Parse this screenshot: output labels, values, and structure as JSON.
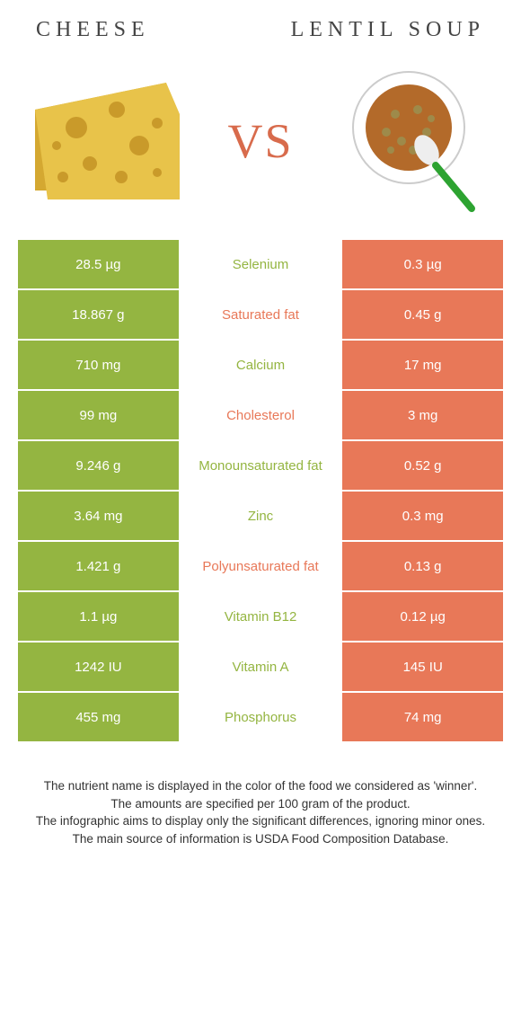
{
  "header": {
    "left": "Cheese",
    "right": "Lentil soup",
    "vs": "VS"
  },
  "colors": {
    "left_bg": "#94b541",
    "mid_bg": "#ffffff",
    "right_bg": "#e87858",
    "mid_text_winner_left": "#94b541",
    "mid_text_winner_right": "#e87858",
    "cell_text": "#ffffff"
  },
  "table": {
    "rows": [
      {
        "left": "28.5 µg",
        "label": "Selenium",
        "right": "0.3 µg",
        "winner": "left"
      },
      {
        "left": "18.867 g",
        "label": "Saturated fat",
        "right": "0.45 g",
        "winner": "right"
      },
      {
        "left": "710 mg",
        "label": "Calcium",
        "right": "17 mg",
        "winner": "left"
      },
      {
        "left": "99 mg",
        "label": "Cholesterol",
        "right": "3 mg",
        "winner": "right"
      },
      {
        "left": "9.246 g",
        "label": "Monounsaturated fat",
        "right": "0.52 g",
        "winner": "left"
      },
      {
        "left": "3.64 mg",
        "label": "Zinc",
        "right": "0.3 mg",
        "winner": "left"
      },
      {
        "left": "1.421 g",
        "label": "Polyunsaturated fat",
        "right": "0.13 g",
        "winner": "right"
      },
      {
        "left": "1.1 µg",
        "label": "Vitamin B12",
        "right": "0.12 µg",
        "winner": "left"
      },
      {
        "left": "1242 IU",
        "label": "Vitamin A",
        "right": "145 IU",
        "winner": "left"
      },
      {
        "left": "455 mg",
        "label": "Phosphorus",
        "right": "74 mg",
        "winner": "left"
      }
    ]
  },
  "footer": {
    "l1": "The nutrient name is displayed in the color of the food we considered as 'winner'.",
    "l2": "The amounts are specified per 100 gram of the product.",
    "l3": "The infographic aims to display only the significant differences, ignoring minor ones.",
    "l4": "The main source of information is USDA Food Composition Database."
  }
}
